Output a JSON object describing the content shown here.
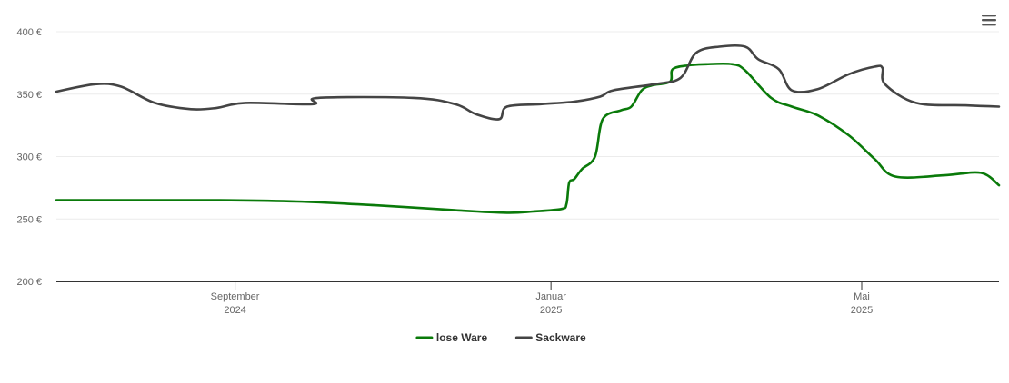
{
  "chart_data": {
    "type": "line",
    "y_ticks": [
      {
        "value": 200,
        "label": "200 €"
      },
      {
        "value": 250,
        "label": "250 €"
      },
      {
        "value": 300,
        "label": "300 €"
      },
      {
        "value": 350,
        "label": "350 €"
      },
      {
        "value": 400,
        "label": "400 €"
      }
    ],
    "ylim": [
      200,
      400
    ],
    "xlim": [
      "2024-06-24",
      "2025-06-23"
    ],
    "x_ticks": [
      {
        "date": "2024-09-01",
        "month": "September",
        "year": "2024"
      },
      {
        "date": "2025-01-01",
        "month": "Januar",
        "year": "2025"
      },
      {
        "date": "2025-05-01",
        "month": "Mai",
        "year": "2025"
      }
    ],
    "grid": true,
    "legend_position": "bottom-center",
    "series": [
      {
        "name": "lose Ware",
        "color": "#0a7a0a",
        "points": [
          [
            "2024-06-24",
            265
          ],
          [
            "2024-08-26",
            265
          ],
          [
            "2024-09-25",
            264
          ],
          [
            "2024-10-25",
            261
          ],
          [
            "2024-11-25",
            257
          ],
          [
            "2024-12-15",
            255
          ],
          [
            "2024-12-25",
            256
          ],
          [
            "2025-01-05",
            258
          ],
          [
            "2025-01-07",
            262
          ],
          [
            "2025-01-08",
            279
          ],
          [
            "2025-01-10",
            282
          ],
          [
            "2025-01-13",
            290
          ],
          [
            "2025-01-18",
            300
          ],
          [
            "2025-01-21",
            330
          ],
          [
            "2025-01-28",
            337
          ],
          [
            "2025-02-01",
            340
          ],
          [
            "2025-02-05",
            353
          ],
          [
            "2025-02-09",
            357
          ],
          [
            "2025-02-16",
            360
          ],
          [
            "2025-02-17",
            370
          ],
          [
            "2025-02-23",
            373
          ],
          [
            "2025-03-02",
            374
          ],
          [
            "2025-03-12",
            374
          ],
          [
            "2025-03-17",
            369
          ],
          [
            "2025-03-27",
            347
          ],
          [
            "2025-04-04",
            340
          ],
          [
            "2025-04-14",
            333
          ],
          [
            "2025-04-26",
            317
          ],
          [
            "2025-05-06",
            298
          ],
          [
            "2025-05-14",
            284
          ],
          [
            "2025-06-02",
            285
          ],
          [
            "2025-06-16",
            287
          ],
          [
            "2025-06-23",
            277
          ]
        ]
      },
      {
        "name": "Sackware",
        "color": "#444444",
        "points": [
          [
            "2024-06-24",
            352
          ],
          [
            "2024-07-09",
            358
          ],
          [
            "2024-07-19",
            356
          ],
          [
            "2024-08-01",
            343
          ],
          [
            "2024-08-15",
            338
          ],
          [
            "2024-08-25",
            339
          ],
          [
            "2024-09-05",
            343
          ],
          [
            "2024-10-01",
            342
          ],
          [
            "2024-10-03",
            347
          ],
          [
            "2024-11-09",
            347
          ],
          [
            "2024-11-25",
            342
          ],
          [
            "2024-12-03",
            334
          ],
          [
            "2024-12-12",
            330
          ],
          [
            "2024-12-15",
            340
          ],
          [
            "2024-12-28",
            342
          ],
          [
            "2025-01-10",
            344
          ],
          [
            "2025-01-20",
            348
          ],
          [
            "2025-01-25",
            353
          ],
          [
            "2025-02-10",
            358
          ],
          [
            "2025-02-20",
            363
          ],
          [
            "2025-02-26",
            383
          ],
          [
            "2025-03-07",
            388
          ],
          [
            "2025-03-17",
            388
          ],
          [
            "2025-03-22",
            378
          ],
          [
            "2025-03-30",
            370
          ],
          [
            "2025-04-04",
            353
          ],
          [
            "2025-04-14",
            354
          ],
          [
            "2025-04-26",
            366
          ],
          [
            "2025-05-06",
            372
          ],
          [
            "2025-05-09",
            371
          ],
          [
            "2025-05-10",
            358
          ],
          [
            "2025-05-22",
            343
          ],
          [
            "2025-06-10",
            341
          ],
          [
            "2025-06-23",
            340
          ]
        ]
      }
    ]
  },
  "icons": {
    "menu": "hamburger-menu-icon"
  }
}
